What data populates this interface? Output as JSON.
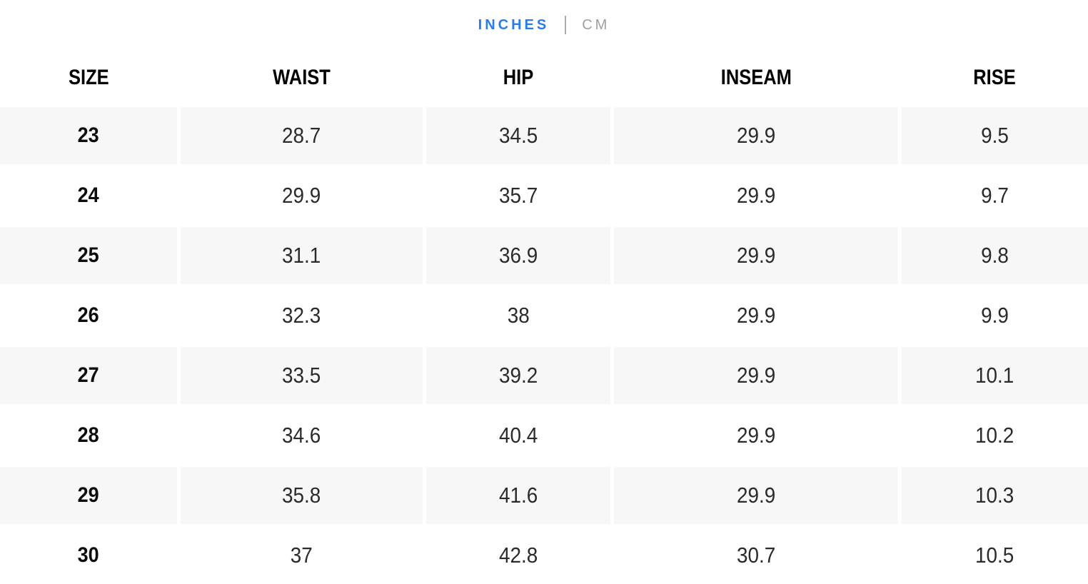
{
  "unit_toggle": {
    "inches_label": "INCHES",
    "cm_label": "CM",
    "active_unit": "inches",
    "active_color": "#2b7be9",
    "inactive_color": "#9aa0a5"
  },
  "table": {
    "headers": [
      "SIZE",
      "WAIST",
      "HIP",
      "INSEAM",
      "RISE"
    ],
    "rows": [
      [
        "23",
        "28.7",
        "34.5",
        "29.9",
        "9.5"
      ],
      [
        "24",
        "29.9",
        "35.7",
        "29.9",
        "9.7"
      ],
      [
        "25",
        "31.1",
        "36.9",
        "29.9",
        "9.8"
      ],
      [
        "26",
        "32.3",
        "38",
        "29.9",
        "9.9"
      ],
      [
        "27",
        "33.5",
        "39.2",
        "29.9",
        "10.1"
      ],
      [
        "28",
        "34.6",
        "40.4",
        "29.9",
        "10.2"
      ],
      [
        "29",
        "35.8",
        "41.6",
        "29.9",
        "10.3"
      ],
      [
        "30",
        "37",
        "42.8",
        "30.7",
        "10.5"
      ]
    ],
    "colors": {
      "striped_row_background": "#f7f7f7",
      "header_text": "#000000",
      "cell_text": "#2b2b2b"
    }
  }
}
